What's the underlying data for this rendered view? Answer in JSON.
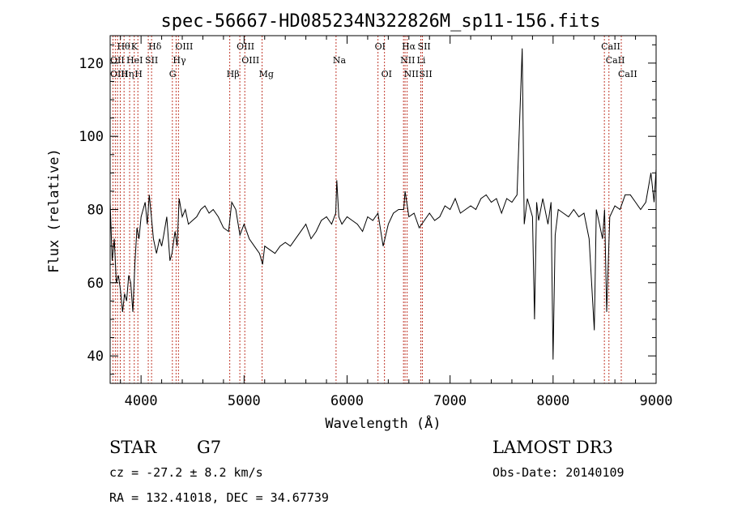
{
  "chart_data": {
    "type": "line",
    "title": "spec-56667-HD085234N322826M_sp11-156.fits",
    "xlabel": "Wavelength (Å)",
    "ylabel": "Flux (relative)",
    "xlim": [
      3700,
      9000
    ],
    "ylim": [
      32.5,
      127.5
    ],
    "xticks": [
      4000,
      5000,
      6000,
      7000,
      8000,
      9000
    ],
    "yticks": [
      40,
      60,
      80,
      100,
      120
    ],
    "grid": false,
    "series": [
      {
        "x": [
          3700,
          3720,
          3740,
          3760,
          3780,
          3800,
          3820,
          3840,
          3860,
          3880,
          3900,
          3920,
          3940,
          3960,
          3980,
          4000,
          4020,
          4040,
          4060,
          4080,
          4100,
          4120,
          4150,
          4180,
          4200,
          4220,
          4250,
          4280,
          4300,
          4330,
          4350,
          4370,
          4400,
          4430,
          4460,
          4500,
          4540,
          4580,
          4620,
          4660,
          4700,
          4750,
          4800,
          4850,
          4880,
          4920,
          4960,
          5000,
          5050,
          5100,
          5150,
          5180,
          5200,
          5250,
          5300,
          5350,
          5400,
          5450,
          5500,
          5550,
          5600,
          5650,
          5700,
          5750,
          5800,
          5850,
          5890,
          5900,
          5920,
          5950,
          6000,
          6050,
          6100,
          6150,
          6200,
          6250,
          6300,
          6350,
          6400,
          6450,
          6500,
          6550,
          6563,
          6600,
          6650,
          6700,
          6750,
          6800,
          6850,
          6900,
          6950,
          7000,
          7050,
          7100,
          7150,
          7200,
          7250,
          7300,
          7350,
          7400,
          7450,
          7500,
          7550,
          7600,
          7650,
          7700,
          7720,
          7750,
          7800,
          7820,
          7840,
          7860,
          7900,
          7950,
          7980,
          8000,
          8020,
          8050,
          8100,
          8150,
          8200,
          8250,
          8300,
          8350,
          8400,
          8420,
          8450,
          8480,
          8500,
          8520,
          8550,
          8600,
          8650,
          8700,
          8750,
          8800,
          8850,
          8900,
          8950,
          8980,
          9000
        ],
        "y": [
          82,
          66,
          72,
          60,
          62,
          58,
          52,
          57,
          55,
          62,
          60,
          52,
          65,
          75,
          72,
          78,
          80,
          82,
          76,
          84,
          78,
          72,
          68,
          72,
          70,
          73,
          78,
          66,
          68,
          74,
          70,
          83,
          78,
          80,
          76,
          77,
          78,
          80,
          81,
          79,
          80,
          78,
          75,
          74,
          82,
          80,
          73,
          76,
          72,
          70,
          68,
          65,
          70,
          69,
          68,
          70,
          71,
          70,
          72,
          74,
          76,
          72,
          74,
          77,
          78,
          76,
          79,
          88,
          78,
          76,
          78,
          77,
          76,
          74,
          78,
          77,
          79,
          70,
          76,
          79,
          80,
          80,
          85,
          78,
          79,
          75,
          77,
          79,
          77,
          78,
          81,
          80,
          83,
          79,
          80,
          81,
          80,
          83,
          84,
          82,
          83,
          79,
          83,
          82,
          84,
          124,
          76,
          83,
          78,
          50,
          82,
          77,
          83,
          76,
          82,
          39,
          73,
          80,
          79,
          78,
          80,
          78,
          79,
          72,
          47,
          80,
          76,
          72,
          80,
          52,
          78,
          81,
          80,
          84,
          84,
          82,
          80,
          82,
          90,
          82,
          91
        ]
      }
    ],
    "annotations_top": [
      {
        "text": "Hθ",
        "x": 3798,
        "row": 0
      },
      {
        "text": "OII",
        "x": 3727,
        "row": 1
      },
      {
        "text": "OIII",
        "x": 3700,
        "row": 2
      },
      {
        "text": "Hη",
        "x": 3835,
        "row": 2
      },
      {
        "text": "K",
        "x": 3934,
        "row": 0
      },
      {
        "text": "HeI",
        "x": 3889,
        "row": 1
      },
      {
        "text": "H",
        "x": 3969,
        "row": 2
      },
      {
        "text": "SII",
        "x": 4070,
        "row": 1
      },
      {
        "text": "Hδ",
        "x": 4102,
        "row": 0
      },
      {
        "text": "OIII",
        "x": 4363,
        "row": 0
      },
      {
        "text": "Hγ",
        "x": 4340,
        "row": 1
      },
      {
        "text": "G",
        "x": 4304,
        "row": 2
      },
      {
        "text": "Hβ",
        "x": 4861,
        "row": 2
      },
      {
        "text": "OIII",
        "x": 4959,
        "row": 0
      },
      {
        "text": "OIII",
        "x": 5007,
        "row": 1
      },
      {
        "text": "Mg",
        "x": 5175,
        "row": 2
      },
      {
        "text": "Na",
        "x": 5893,
        "row": 1
      },
      {
        "text": "OI",
        "x": 6300,
        "row": 0
      },
      {
        "text": "OI",
        "x": 6363,
        "row": 2
      },
      {
        "text": "Hα",
        "x": 6563,
        "row": 0
      },
      {
        "text": "NII",
        "x": 6548,
        "row": 1
      },
      {
        "text": "NII",
        "x": 6583,
        "row": 2
      },
      {
        "text": "SII",
        "x": 6716,
        "row": 0
      },
      {
        "text": "Li",
        "x": 6708,
        "row": 1
      },
      {
        "text": "SII",
        "x": 6731,
        "row": 2
      },
      {
        "text": "CaII",
        "x": 8498,
        "row": 0
      },
      {
        "text": "CaII",
        "x": 8542,
        "row": 1
      },
      {
        "text": "CaII",
        "x": 8662,
        "row": 2
      }
    ],
    "line_markers": [
      3727,
      3750,
      3771,
      3798,
      3835,
      3889,
      3934,
      3969,
      4070,
      4102,
      4304,
      4340,
      4363,
      4861,
      4959,
      5007,
      5175,
      5893,
      6300,
      6363,
      6548,
      6563,
      6583,
      6716,
      6731,
      8498,
      8542,
      8662
    ]
  },
  "info": {
    "object_class": "STAR",
    "subclass": "G7",
    "survey": "LAMOST DR3",
    "cz": "cz = -27.2 ± 8.2 km/s",
    "obs_date": "Obs-Date: 20140109",
    "coords": "RA = 132.41018, DEC =  34.67739"
  },
  "colors": {
    "line": "#000000",
    "marker": "#c0392b"
  }
}
